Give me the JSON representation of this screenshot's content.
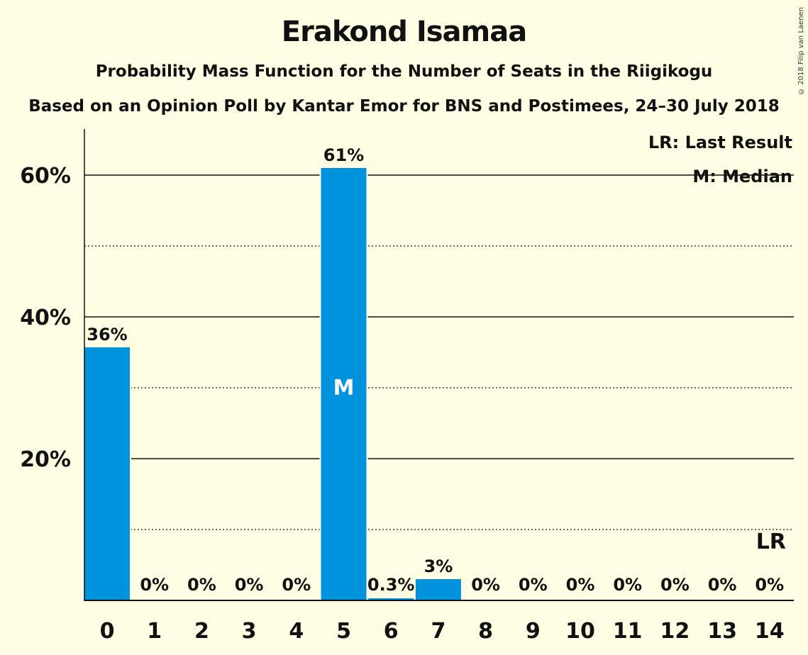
{
  "chart_data": {
    "type": "bar",
    "title": "Erakond Isamaa",
    "subtitle": "Probability Mass Function for the Number of Seats in the Riigikogu",
    "subtitle2": "Based on an Opinion Poll by Kantar Emor for BNS and Postimees, 24–30 July 2018",
    "copyright": "© 2018 Filip van Laenen",
    "categories": [
      "0",
      "1",
      "2",
      "3",
      "4",
      "5",
      "6",
      "7",
      "8",
      "9",
      "10",
      "11",
      "12",
      "13",
      "14"
    ],
    "values": [
      35.7,
      0,
      0,
      0,
      0,
      61,
      0.3,
      3,
      0,
      0,
      0,
      0,
      0,
      0,
      0
    ],
    "labels": [
      "36%",
      "0%",
      "0%",
      "0%",
      "0%",
      "61%",
      "0.3%",
      "3%",
      "0%",
      "0%",
      "0%",
      "0%",
      "0%",
      "0%",
      "0%"
    ],
    "ylim": [
      0,
      66.5
    ],
    "yticks": [
      20,
      40,
      60
    ],
    "ytick_labels": [
      "20%",
      "40%",
      "60%"
    ],
    "dotted_lines": [
      10,
      30,
      50
    ],
    "bar_color": "#0093DD",
    "median_index": 5,
    "median_marker": "M",
    "last_result_index": 14,
    "last_result_marker": "LR",
    "legend": [
      "LR: Last Result",
      "M: Median"
    ],
    "legend_position": "top-right"
  }
}
